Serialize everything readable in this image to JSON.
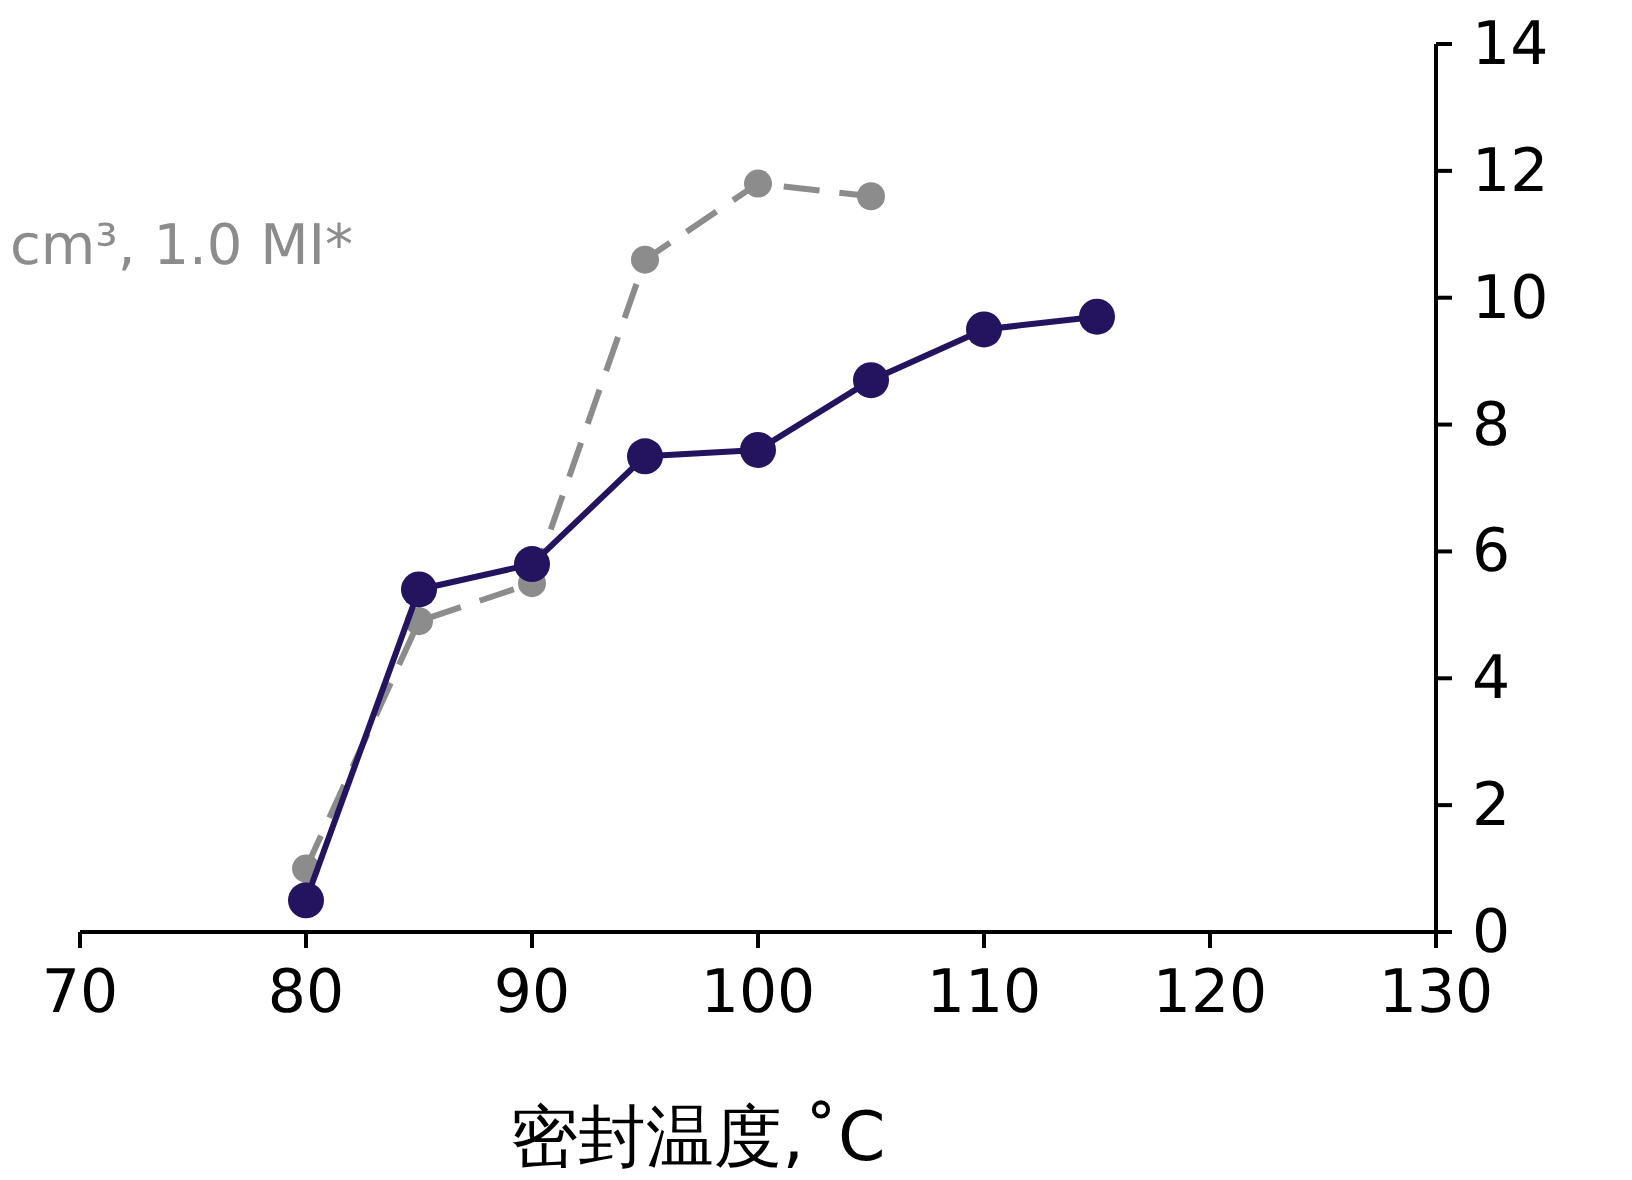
{
  "chart_data": {
    "type": "line",
    "xlabel": "密封温度,˚C",
    "x": [
      80,
      85,
      90,
      95,
      100,
      105,
      110,
      115
    ],
    "series": [
      {
        "name": "cm³, 1.0 MI*",
        "color": "#8c8c8c",
        "line_style": "dashed",
        "values": [
          1.0,
          4.9,
          5.5,
          10.6,
          11.8,
          11.6,
          null,
          null
        ]
      },
      {
        "color": "#24135f",
        "line_style": "solid",
        "values": [
          0.5,
          5.4,
          5.8,
          7.5,
          7.6,
          8.7,
          9.5,
          9.7
        ]
      }
    ],
    "marker": "circle",
    "xlim": [
      70,
      130
    ],
    "xticks": [
      70,
      80,
      90,
      100,
      110,
      120,
      130
    ],
    "ylim": [
      0,
      14
    ],
    "yticks": [
      0,
      2,
      4,
      6,
      8,
      10,
      12,
      14
    ],
    "grid": false
  }
}
